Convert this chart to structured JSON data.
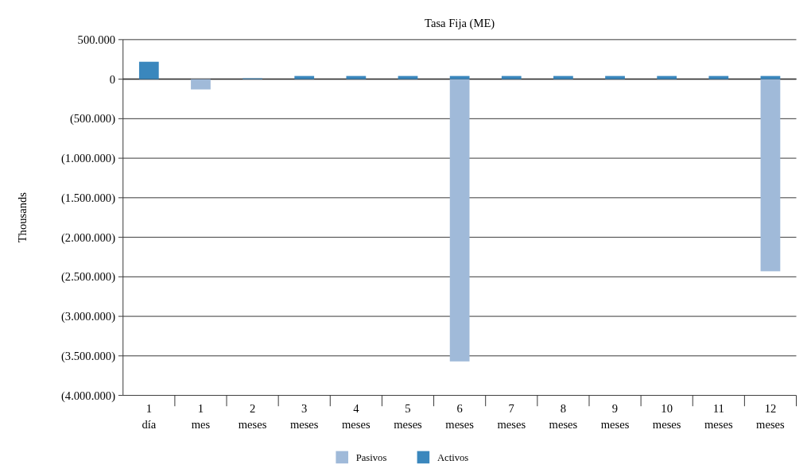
{
  "chart_data": {
    "type": "bar",
    "title": "Tasa Fija (ME)",
    "ylabel": "Thousands",
    "stacked": true,
    "grid": "y",
    "legend": "bottom",
    "categories": [
      "1 día",
      "1 mes",
      "2 meses",
      "3 meses",
      "4 meses",
      "5 meses",
      "6 meses",
      "7 meses",
      "8 meses",
      "9 meses",
      "10 meses",
      "11 meses",
      "12 meses"
    ],
    "series": [
      {
        "name": "Pasivos",
        "color": "#a0bad9",
        "values": [
          null,
          -130000,
          null,
          null,
          null,
          null,
          -3570000,
          null,
          null,
          null,
          null,
          null,
          -2430000
        ]
      },
      {
        "name": "Activos",
        "color": "#3a87bd",
        "values": [
          220000,
          null,
          10000,
          40000,
          40000,
          40000,
          40000,
          40000,
          40000,
          40000,
          40000,
          40000,
          40000
        ]
      }
    ],
    "ylim": [
      -4000000,
      500000
    ],
    "yticks": [
      {
        "value": 500000,
        "label": "500.000"
      },
      {
        "value": 0,
        "label": "0"
      },
      {
        "value": -500000,
        "label": "(500.000)"
      },
      {
        "value": -1000000,
        "label": "(1.000.000)"
      },
      {
        "value": -1500000,
        "label": "(1.500.000)"
      },
      {
        "value": -2000000,
        "label": "(2.000.000)"
      },
      {
        "value": -2500000,
        "label": "(2.500.000)"
      },
      {
        "value": -3000000,
        "label": "(3.000.000)"
      },
      {
        "value": -3500000,
        "label": "(3.500.000)"
      },
      {
        "value": -4000000,
        "label": "(4.000.000)"
      }
    ]
  }
}
